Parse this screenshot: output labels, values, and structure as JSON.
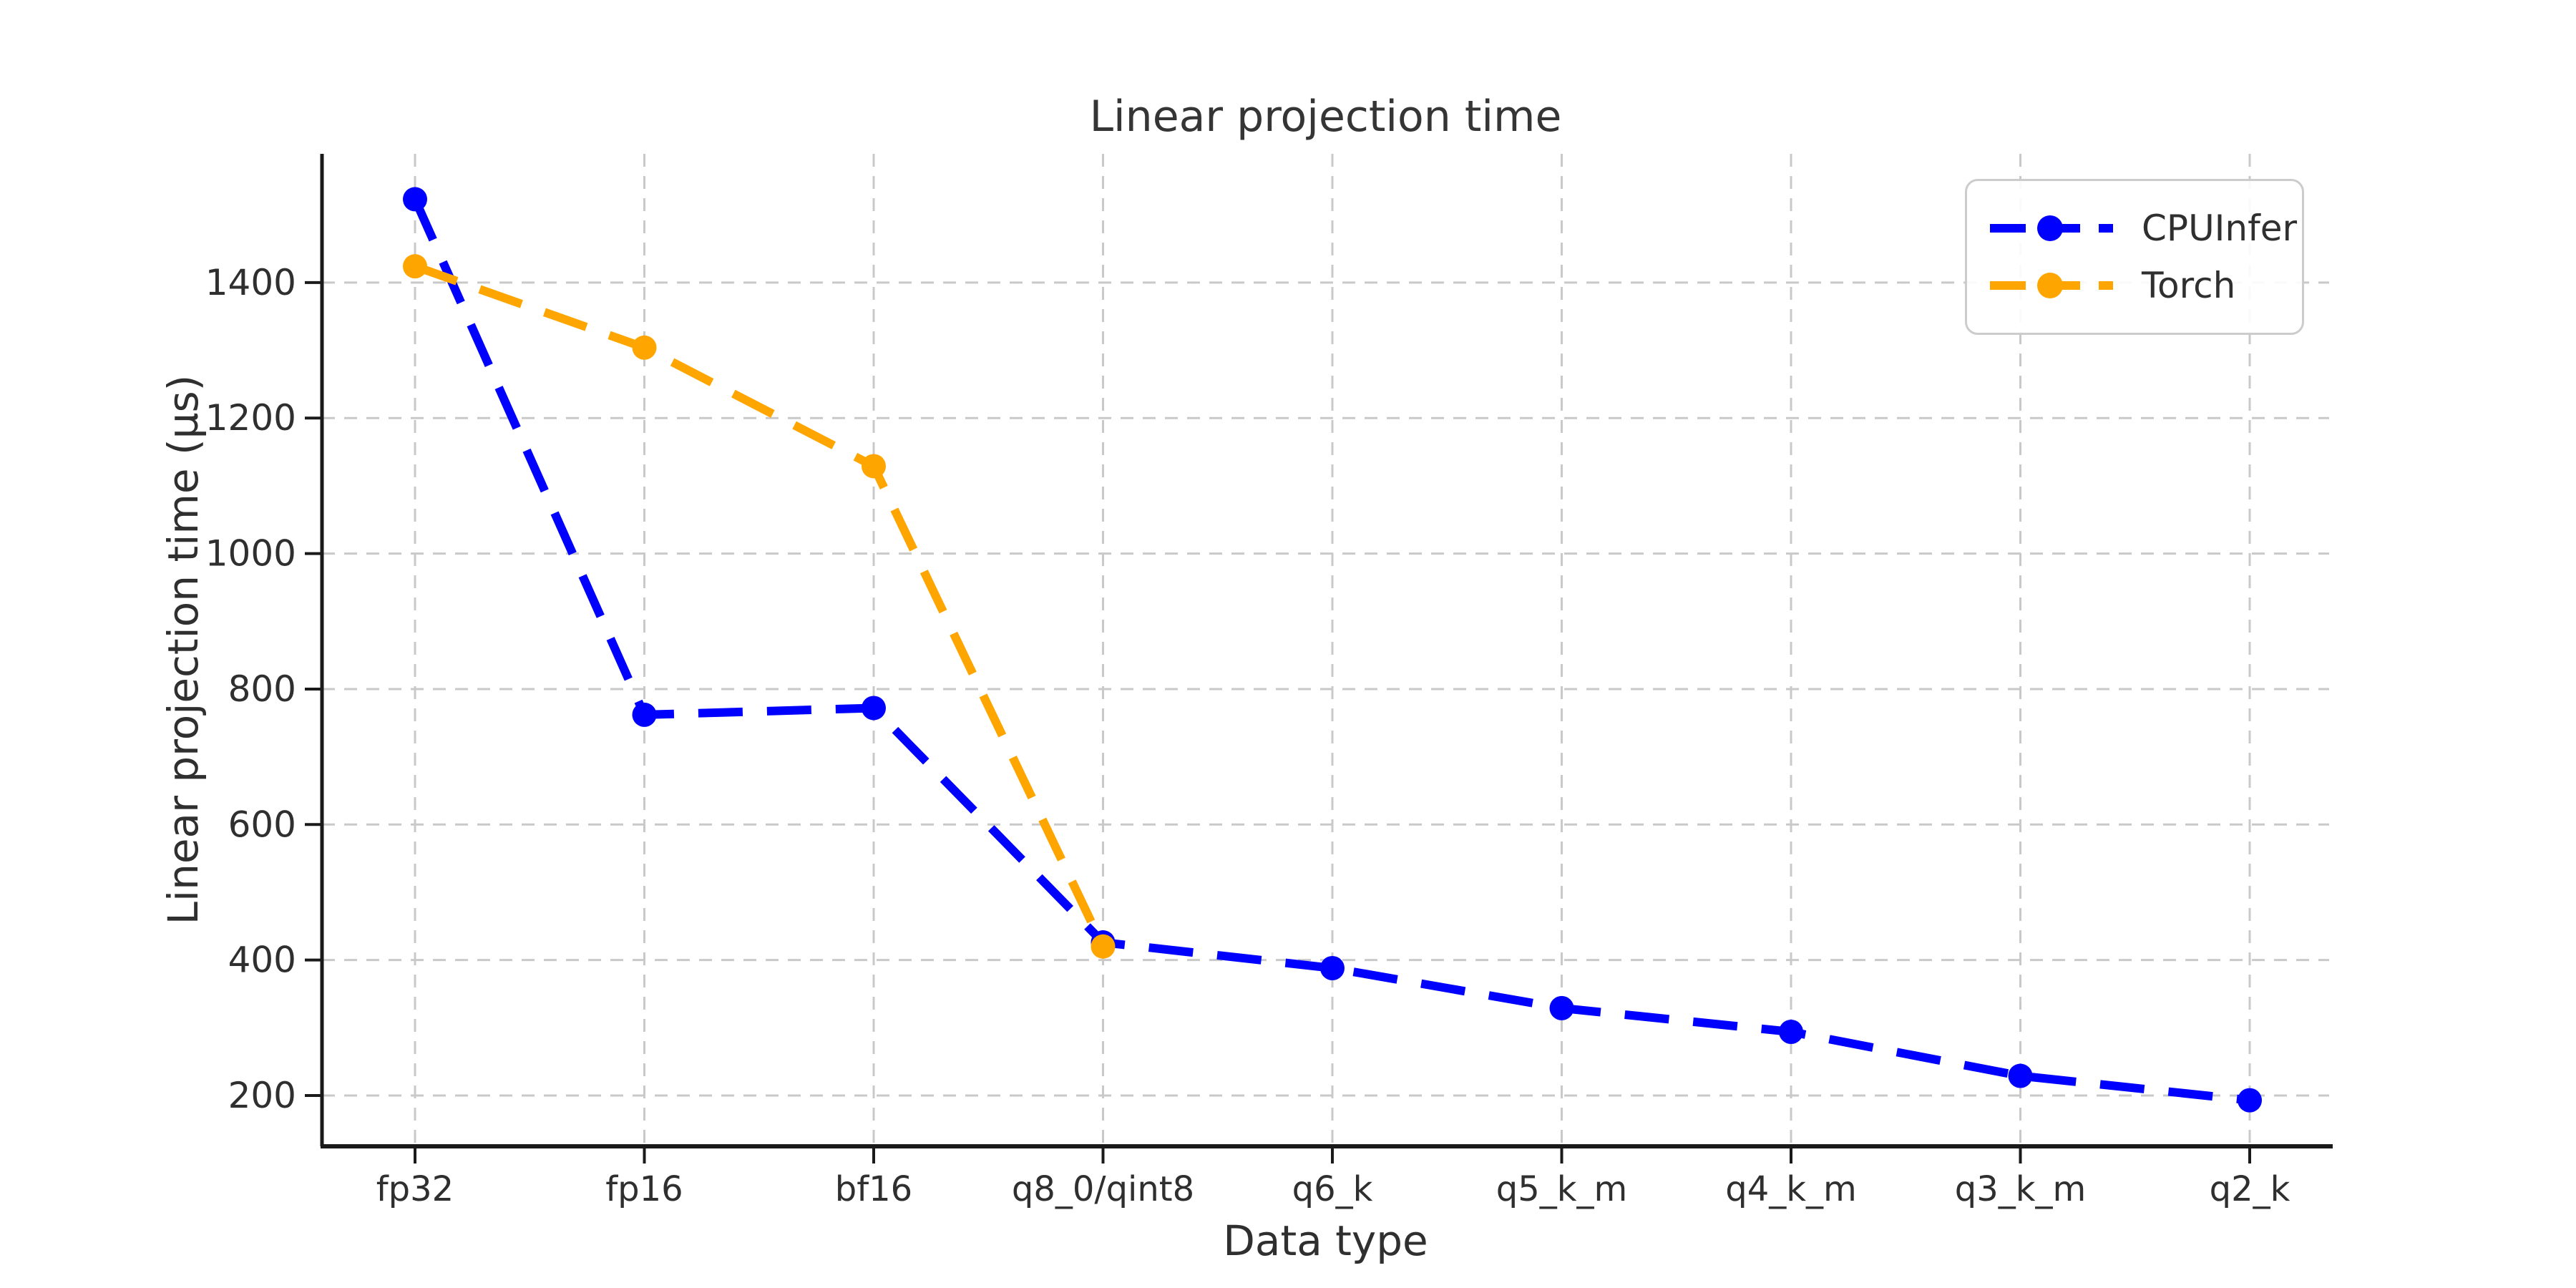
{
  "figure": {
    "background": "#ffffff",
    "text_color": "#2f2f2f",
    "axis_color": "#1a1a1a",
    "grid_color": "#c9c9c9",
    "legend_border_color": "#cccccc"
  },
  "chart_data": {
    "type": "line",
    "title": "Linear projection time",
    "xlabel": "Data type",
    "ylabel": "Linear projection time (µs)",
    "categories": [
      "fp32",
      "fp16",
      "bf16",
      "q8_0/qint8",
      "q6_k",
      "q5_k_m",
      "q4_k_m",
      "q3_k_m",
      "q2_k"
    ],
    "series": [
      {
        "name": "CPUInfer",
        "color": "#0000ff",
        "line_style": "dashed",
        "marker": "circle",
        "values": [
          1523,
          762,
          772,
          426,
          388,
          329,
          294,
          229,
          193
        ]
      },
      {
        "name": "Torch",
        "color": "#ffa500",
        "line_style": "dashed",
        "marker": "circle",
        "values": [
          1424,
          1304,
          1129,
          420
        ]
      }
    ],
    "yticks": [
      200,
      400,
      600,
      800,
      1000,
      1200,
      1400
    ],
    "ylim": [
      125,
      1590
    ],
    "grid": "dashed both axes",
    "spines": "left and bottom only",
    "legend_position": "upper right",
    "legend_entries": [
      "CPUInfer",
      "Torch"
    ]
  }
}
